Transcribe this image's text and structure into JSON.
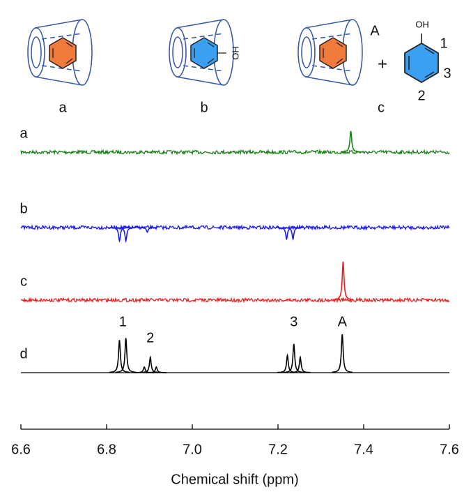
{
  "chart_data": {
    "type": "nmr",
    "xlabel": "Chemical shift (ppm)",
    "xlim": [
      6.6,
      7.6
    ],
    "xticks": [
      6.6,
      6.8,
      {
        "value": 7,
        "label": "7.0"
      },
      7.2,
      7.4,
      7.6
    ],
    "series": [
      {
        "name": "a",
        "color": "#1a7f1a",
        "x": [
          7.37
        ],
        "values": [
          0.55
        ]
      },
      {
        "name": "b",
        "color": "#1c1cf0",
        "x": [
          6.83,
          6.845,
          6.895,
          7.22,
          7.235
        ],
        "values": [
          -0.35,
          -0.35,
          -0.12,
          -0.3,
          -0.3
        ]
      },
      {
        "name": "c",
        "color": "#ee1c1c",
        "x": [
          7.352
        ],
        "values": [
          1.0
        ]
      },
      {
        "name": "d",
        "color": "#000000",
        "x": [
          6.83,
          6.845,
          6.888,
          6.902,
          6.916,
          7.222,
          7.237,
          7.252,
          7.35
        ],
        "values": [
          0.85,
          0.9,
          0.15,
          0.4,
          0.15,
          0.45,
          0.75,
          0.4,
          1.0
        ]
      }
    ],
    "annotations": [
      {
        "text": "1",
        "x": 6.838
      },
      {
        "text": "2",
        "x": 6.902
      },
      {
        "text": "3",
        "x": 7.237
      },
      {
        "text": "A",
        "x": 7.35
      }
    ]
  },
  "diagram": {
    "labels": [
      "a",
      "b",
      "c",
      "A",
      "+",
      "OH",
      "1",
      "3",
      "2",
      "HO"
    ]
  }
}
